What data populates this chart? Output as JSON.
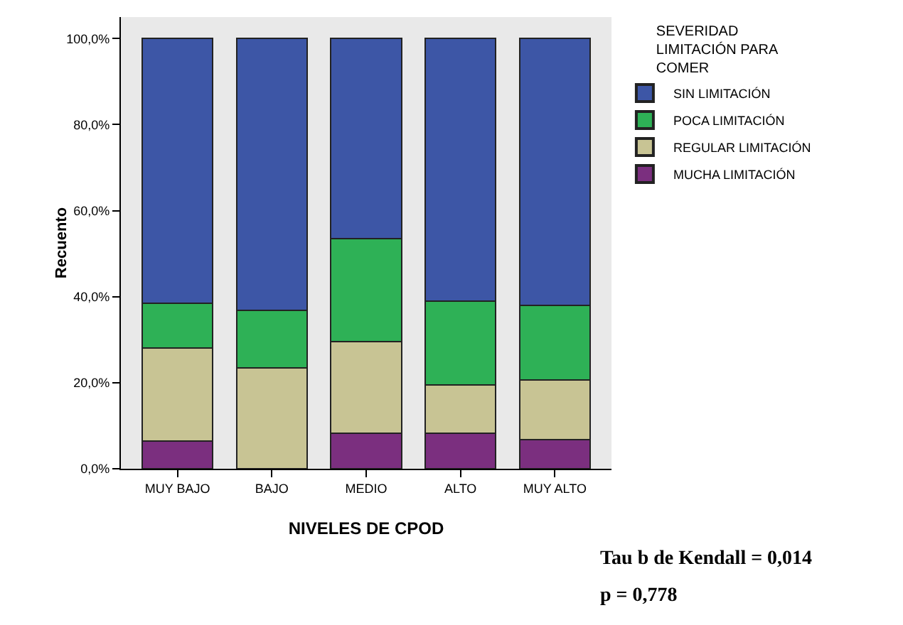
{
  "chart_data": {
    "type": "bar",
    "stacked": true,
    "xlabel": "NIVELES DE CPOD",
    "ylabel": "Recuento",
    "legend_title": "SEVERIDAD LIMITACIÓN PARA COMER",
    "categories": [
      "MUY BAJO",
      "BAJO",
      "MEDIO",
      "ALTO",
      "MUY ALTO"
    ],
    "series": [
      {
        "name": "MUCHA LIMITACIÓN",
        "color": "#7b2f7f",
        "values": [
          6.5,
          0,
          8.3,
          8.2,
          6.8
        ]
      },
      {
        "name": "REGULAR LIMITACIÓN",
        "color": "#c8c494",
        "values": [
          21.5,
          23.5,
          21.2,
          11.3,
          13.9
        ]
      },
      {
        "name": "POCA LIMITACIÓN",
        "color": "#2eb156",
        "values": [
          10.5,
          13.3,
          24,
          19.5,
          17.3
        ]
      },
      {
        "name": "SIN LIMITACIÓN",
        "color": "#3d56a6",
        "values": [
          61.5,
          63.2,
          46.5,
          61,
          62
        ]
      }
    ],
    "ylim": [
      0,
      105
    ],
    "yticks": [
      {
        "value": 0,
        "label": "0,0%"
      },
      {
        "value": 20,
        "label": "20,0%"
      },
      {
        "value": 40,
        "label": "40,0%"
      },
      {
        "value": 60,
        "label": "60,0%"
      },
      {
        "value": 80,
        "label": "80,0%"
      },
      {
        "value": 100,
        "label": "100,0%"
      }
    ],
    "grid": false,
    "legend": "top right",
    "annotations": [
      "Tau b de Kendall = 0,014",
      "p = 0,778"
    ]
  }
}
